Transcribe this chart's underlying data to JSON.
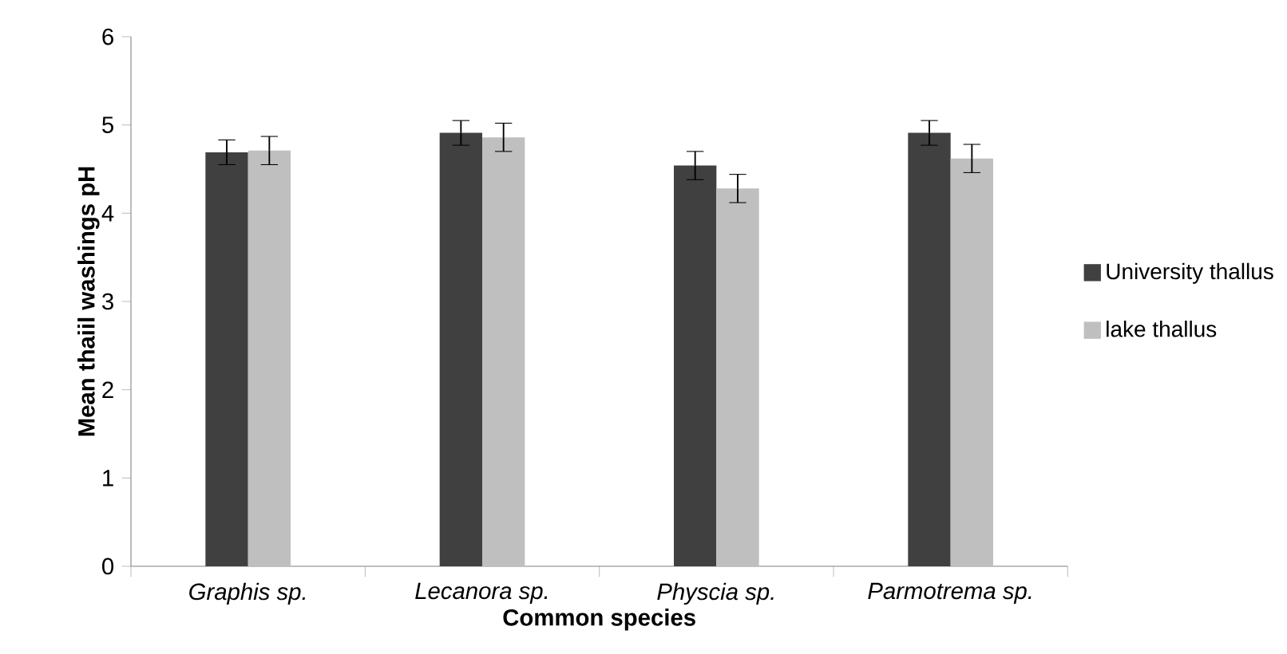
{
  "chart_data": {
    "type": "bar",
    "xlabel": "Common species",
    "ylabel": "Mean thaiil washings pH",
    "categories": [
      "Graphis sp.",
      "Lecanora sp.",
      "Physcia sp.",
      "Parmotrema sp."
    ],
    "series": [
      {
        "name": "University thallus",
        "color": "#404040",
        "values": [
          4.69,
          4.91,
          4.54,
          4.91
        ],
        "errors": [
          0.14,
          0.14,
          0.16,
          0.14
        ]
      },
      {
        "name": "lake thallus",
        "color": "#bfbfbf",
        "values": [
          4.71,
          4.86,
          4.28,
          4.62
        ],
        "errors": [
          0.16,
          0.16,
          0.16,
          0.16
        ]
      }
    ],
    "ylim": [
      0,
      6
    ],
    "yticks": [
      0,
      1,
      2,
      3,
      4,
      5,
      6
    ],
    "grid": false,
    "legend": "right"
  }
}
